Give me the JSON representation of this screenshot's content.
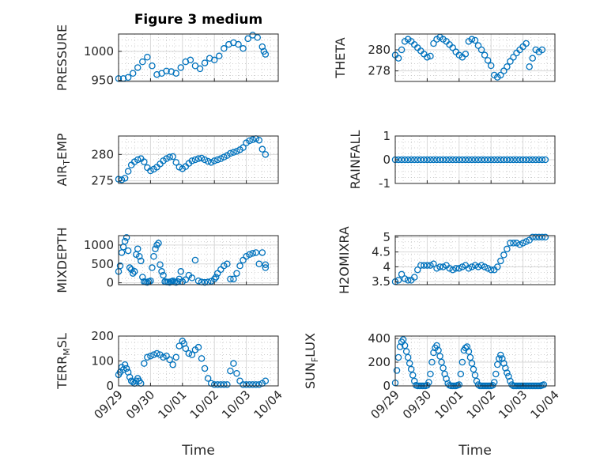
{
  "title": "Figure 3 medium",
  "colors": {
    "marker": "#0072BD",
    "grid": "#d9d9d9",
    "axis": "#262626"
  },
  "chart_data": [
    {
      "id": "pressure",
      "type": "scatter",
      "ylabel": "PRESSURE",
      "ylim": [
        948,
        1030
      ],
      "yticks": [
        950,
        1000
      ],
      "ytick_labels": [
        "950",
        "1000"
      ],
      "xticks": true,
      "xtick_labels": false,
      "x": [
        0.0,
        0.15,
        0.3,
        0.45,
        0.6,
        0.75,
        0.9,
        1.05,
        1.2,
        1.35,
        1.5,
        1.65,
        1.8,
        1.95,
        2.1,
        2.25,
        2.4,
        2.55,
        2.7,
        2.85,
        3.0,
        3.15,
        3.3,
        3.45,
        3.6,
        3.75,
        3.9,
        4.05,
        4.2
      ],
      "y": [
        953,
        953,
        955,
        962,
        972,
        982,
        990,
        975,
        960,
        962,
        966,
        965,
        962,
        972,
        982,
        985,
        975,
        970,
        980,
        988,
        985,
        992,
        1005,
        1012,
        1015,
        1012,
        1005,
        1022,
        1028
      ],
      "x2": [
        4.35,
        4.5,
        4.55,
        4.6
      ],
      "y2": [
        1024,
        1008,
        1000,
        995
      ]
    },
    {
      "id": "theta",
      "type": "scatter",
      "ylabel": "THETA",
      "ylim": [
        277,
        281.5
      ],
      "yticks": [
        278,
        280
      ],
      "ytick_labels": [
        "278",
        "280"
      ],
      "xticks": true,
      "xtick_labels": false,
      "x": [
        0.0,
        0.1,
        0.2,
        0.3,
        0.4,
        0.5,
        0.6,
        0.7,
        0.8,
        0.9,
        1.0,
        1.1,
        1.2,
        1.3,
        1.4,
        1.5,
        1.6,
        1.7,
        1.8,
        1.9,
        2.0,
        2.1,
        2.2,
        2.3,
        2.4,
        2.5,
        2.6,
        2.7,
        2.8,
        2.9,
        3.0,
        3.1,
        3.2,
        3.3,
        3.4,
        3.5,
        3.6,
        3.7,
        3.8,
        3.9,
        4.0,
        4.1,
        4.2,
        4.3,
        4.4,
        4.5,
        4.6
      ],
      "y": [
        279.5,
        279.2,
        280.0,
        280.8,
        281.0,
        280.8,
        280.5,
        280.2,
        279.9,
        279.6,
        279.3,
        279.4,
        280.6,
        281.0,
        281.2,
        281.0,
        280.8,
        280.5,
        280.2,
        279.8,
        279.5,
        279.3,
        279.6,
        280.8,
        281.0,
        280.9,
        280.4,
        280.0,
        279.5,
        279.0,
        278.5,
        277.6,
        277.4,
        277.6,
        278.0,
        278.4,
        278.9,
        279.3,
        279.7,
        280.0,
        280.3,
        280.6,
        278.4,
        279.2,
        280.0,
        279.8,
        280.0
      ]
    },
    {
      "id": "air_temp",
      "type": "scatter",
      "ylabel_main": "AIR",
      "ylabel_sub": "T",
      "ylabel_tail": "EMP",
      "ylim": [
        274.5,
        283.5
      ],
      "yticks": [
        275,
        280
      ],
      "ytick_labels": [
        "275",
        "280"
      ],
      "xticks": true,
      "xtick_labels": false,
      "x": [
        0.0,
        0.1,
        0.2,
        0.3,
        0.4,
        0.5,
        0.6,
        0.7,
        0.8,
        0.9,
        1.0,
        1.1,
        1.2,
        1.3,
        1.4,
        1.5,
        1.6,
        1.7,
        1.8,
        1.9,
        2.0,
        2.1,
        2.2,
        2.3,
        2.4,
        2.5,
        2.6,
        2.7,
        2.8,
        2.9,
        3.0,
        3.1,
        3.2,
        3.3,
        3.4,
        3.5,
        3.6,
        3.7,
        3.8,
        3.9,
        4.0,
        4.1,
        4.2,
        4.3,
        4.4,
        4.5,
        4.6
      ],
      "y": [
        275.3,
        275.2,
        275.5,
        276.8,
        278.0,
        278.6,
        279.0,
        279.2,
        278.6,
        277.5,
        276.9,
        277.2,
        277.6,
        278.2,
        278.8,
        279.2,
        279.5,
        279.6,
        278.5,
        277.6,
        277.3,
        277.7,
        278.3,
        278.8,
        279.0,
        279.2,
        279.3,
        279.0,
        278.7,
        278.5,
        278.8,
        279.0,
        279.2,
        279.5,
        279.8,
        280.2,
        280.4,
        280.6,
        280.9,
        281.3,
        282.2,
        282.6,
        282.8,
        283.0,
        282.7,
        281.0,
        280.0
      ]
    },
    {
      "id": "rainfall",
      "type": "scatter",
      "ylabel": "RAINFALL",
      "ylim": [
        -1,
        1
      ],
      "yticks": [
        -1,
        0,
        1
      ],
      "ytick_labels": [
        "-1",
        "0",
        "1"
      ],
      "xticks": true,
      "xtick_labels": false,
      "x": [
        0.0,
        0.1,
        0.2,
        0.3,
        0.4,
        0.5,
        0.6,
        0.7,
        0.8,
        0.9,
        1.0,
        1.1,
        1.2,
        1.3,
        1.4,
        1.5,
        1.6,
        1.7,
        1.8,
        1.9,
        2.0,
        2.1,
        2.2,
        2.3,
        2.4,
        2.5,
        2.6,
        2.7,
        2.8,
        2.9,
        3.0,
        3.1,
        3.2,
        3.3,
        3.4,
        3.5,
        3.6,
        3.7,
        3.8,
        3.9,
        4.0,
        4.1,
        4.2,
        4.3,
        4.4,
        4.5,
        4.6,
        4.7
      ],
      "y": [
        0,
        0,
        0,
        0,
        0,
        0,
        0,
        0,
        0,
        0,
        0,
        0,
        0,
        0,
        0,
        0,
        0,
        0,
        0,
        0,
        0,
        0,
        0,
        0,
        0,
        0,
        0,
        0,
        0,
        0,
        0,
        0,
        0,
        0,
        0,
        0,
        0,
        0,
        0,
        0,
        0,
        0,
        0,
        0,
        0,
        0,
        0,
        0
      ]
    },
    {
      "id": "mixdepth",
      "type": "scatter",
      "ylabel": "MIXDEPTH",
      "ylim": [
        -50,
        1250
      ],
      "yticks": [
        0,
        500,
        1000
      ],
      "ytick_labels": [
        "0",
        "500",
        "1000"
      ],
      "xticks": true,
      "xtick_labels": false,
      "x": [
        0.0,
        0.05,
        0.1,
        0.15,
        0.2,
        0.25,
        0.3,
        0.35,
        0.4,
        0.45,
        0.5,
        0.55,
        0.6,
        0.65,
        0.7,
        0.75,
        0.8,
        0.85,
        0.9,
        0.95,
        1.0,
        1.05,
        1.1,
        1.15,
        1.2,
        1.25,
        1.3,
        1.35,
        1.4,
        1.45,
        1.5,
        1.55,
        1.6,
        1.65,
        1.7,
        1.75,
        1.8,
        1.85,
        1.9,
        1.95,
        2.0,
        2.1,
        2.2,
        2.3,
        2.4,
        2.5,
        2.6,
        2.7,
        2.8,
        2.9,
        3.0,
        3.05,
        3.1,
        3.2,
        3.3,
        3.4,
        3.5,
        3.6,
        3.7,
        3.8,
        3.9,
        4.0,
        4.1,
        4.2,
        4.3,
        4.4,
        4.5,
        4.6,
        4.6
      ],
      "y": [
        300,
        450,
        800,
        950,
        1100,
        1200,
        850,
        400,
        350,
        250,
        300,
        750,
        900,
        700,
        580,
        150,
        30,
        20,
        10,
        30,
        50,
        400,
        700,
        900,
        1000,
        1050,
        480,
        300,
        200,
        30,
        20,
        20,
        10,
        30,
        50,
        20,
        10,
        30,
        100,
        300,
        30,
        80,
        200,
        130,
        600,
        50,
        20,
        10,
        20,
        40,
        100,
        150,
        250,
        350,
        450,
        500,
        100,
        100,
        250,
        450,
        600,
        700,
        750,
        780,
        800,
        500,
        800,
        480,
        400
      ]
    },
    {
      "id": "h2omixra",
      "type": "scatter",
      "ylabel": "H2OMIXRA",
      "ylim": [
        3.4,
        5.05
      ],
      "yticks": [
        3.5,
        4,
        4.5,
        5
      ],
      "ytick_labels": [
        "3.5",
        "4",
        "4.5",
        "5"
      ],
      "xticks": true,
      "xtick_labels": false,
      "x": [
        0.0,
        0.1,
        0.2,
        0.3,
        0.4,
        0.5,
        0.6,
        0.7,
        0.8,
        0.9,
        1.0,
        1.1,
        1.2,
        1.3,
        1.4,
        1.5,
        1.6,
        1.7,
        1.8,
        1.9,
        2.0,
        2.1,
        2.2,
        2.3,
        2.4,
        2.5,
        2.6,
        2.7,
        2.8,
        2.9,
        3.0,
        3.1,
        3.2,
        3.3,
        3.4,
        3.5,
        3.6,
        3.7,
        3.8,
        3.9,
        4.0,
        4.1,
        4.2,
        4.3,
        4.4,
        4.5,
        4.6,
        4.7
      ],
      "y": [
        3.5,
        3.55,
        3.75,
        3.6,
        3.55,
        3.55,
        3.65,
        3.9,
        4.05,
        4.05,
        4.05,
        4.05,
        4.1,
        3.95,
        4.0,
        4.0,
        4.05,
        3.95,
        3.9,
        3.95,
        3.95,
        4.0,
        4.05,
        3.95,
        4.0,
        4.05,
        4.0,
        4.05,
        4.0,
        3.95,
        3.9,
        3.9,
        4.0,
        4.2,
        4.4,
        4.6,
        4.8,
        4.8,
        4.8,
        4.75,
        4.8,
        4.85,
        4.9,
        5.0,
        5.0,
        5.0,
        5.0,
        5.0
      ]
    },
    {
      "id": "terr_msl",
      "type": "scatter",
      "ylabel_main": "TERR",
      "ylabel_sub": "M",
      "ylabel_tail": "SL",
      "ylim": [
        0,
        200
      ],
      "yticks": [
        0,
        100,
        200
      ],
      "ytick_labels": [
        "0",
        "100",
        "200"
      ],
      "xticks": true,
      "xtick_labels": true,
      "x": [
        0.0,
        0.05,
        0.1,
        0.15,
        0.2,
        0.25,
        0.3,
        0.35,
        0.4,
        0.45,
        0.5,
        0.55,
        0.6,
        0.65,
        0.7,
        0.8,
        0.9,
        1.0,
        1.1,
        1.2,
        1.3,
        1.4,
        1.5,
        1.6,
        1.7,
        1.8,
        1.9,
        2.0,
        2.05,
        2.1,
        2.2,
        2.3,
        2.4,
        2.5,
        2.6,
        2.7,
        2.8,
        2.9,
        3.0,
        3.1,
        3.2,
        3.3,
        3.4,
        3.5,
        3.6,
        3.7,
        3.8,
        3.9,
        4.0,
        4.1,
        4.2,
        4.3,
        4.4,
        4.5,
        4.6
      ],
      "y": [
        45,
        55,
        75,
        65,
        85,
        70,
        55,
        35,
        20,
        15,
        10,
        20,
        30,
        20,
        10,
        90,
        115,
        120,
        125,
        130,
        125,
        115,
        120,
        105,
        85,
        115,
        160,
        180,
        170,
        150,
        130,
        125,
        145,
        155,
        110,
        70,
        30,
        10,
        5,
        5,
        5,
        5,
        5,
        60,
        90,
        50,
        20,
        5,
        5,
        5,
        5,
        5,
        5,
        10,
        20
      ]
    },
    {
      "id": "sun_flux",
      "type": "scatter",
      "ylabel_main": "SUN",
      "ylabel_sub": "F",
      "ylabel_tail": "LUX",
      "ylim": [
        0,
        420
      ],
      "yticks": [
        0,
        200,
        400
      ],
      "ytick_labels": [
        "0",
        "200",
        "400"
      ],
      "xticks": true,
      "xtick_labels": true,
      "x": [
        0.0,
        0.05,
        0.1,
        0.15,
        0.2,
        0.25,
        0.3,
        0.35,
        0.4,
        0.45,
        0.5,
        0.55,
        0.6,
        0.65,
        0.7,
        0.75,
        0.8,
        0.85,
        0.9,
        0.95,
        1.0,
        1.05,
        1.1,
        1.15,
        1.2,
        1.25,
        1.3,
        1.35,
        1.4,
        1.45,
        1.5,
        1.55,
        1.6,
        1.65,
        1.7,
        1.75,
        1.8,
        1.85,
        1.9,
        1.95,
        2.0,
        2.05,
        2.1,
        2.15,
        2.2,
        2.25,
        2.3,
        2.35,
        2.4,
        2.45,
        2.5,
        2.55,
        2.6,
        2.65,
        2.7,
        2.75,
        2.8,
        2.85,
        2.9,
        2.95,
        3.0,
        3.05,
        3.1,
        3.15,
        3.2,
        3.25,
        3.3,
        3.35,
        3.4,
        3.45,
        3.5,
        3.55,
        3.6,
        3.65,
        3.7,
        3.75,
        3.8,
        3.85,
        3.9,
        3.95,
        4.0,
        4.05,
        4.1,
        4.15,
        4.2,
        4.25,
        4.3,
        4.35,
        4.4,
        4.45,
        4.5,
        4.55,
        4.6,
        4.65
      ],
      "y": [
        25,
        130,
        240,
        330,
        370,
        390,
        340,
        290,
        240,
        190,
        140,
        90,
        40,
        5,
        0,
        0,
        0,
        0,
        0,
        0,
        5,
        30,
        100,
        200,
        280,
        320,
        340,
        300,
        250,
        200,
        150,
        100,
        60,
        20,
        5,
        0,
        0,
        0,
        0,
        5,
        10,
        100,
        200,
        300,
        320,
        330,
        290,
        240,
        190,
        140,
        90,
        40,
        10,
        0,
        0,
        0,
        0,
        0,
        0,
        0,
        0,
        5,
        30,
        100,
        180,
        230,
        260,
        230,
        190,
        150,
        110,
        80,
        40,
        10,
        0,
        0,
        0,
        0,
        0,
        0,
        0,
        0,
        0,
        0,
        0,
        0,
        0,
        0,
        0,
        0,
        0,
        0,
        5,
        10
      ]
    }
  ],
  "x_axis": {
    "label": "Time",
    "range": [
      0,
      5
    ],
    "ticks": [
      0,
      1,
      2,
      3,
      4,
      5
    ],
    "tick_labels": [
      "09/29",
      "09/30",
      "10/01",
      "10/02",
      "10/03",
      "10/04"
    ]
  }
}
